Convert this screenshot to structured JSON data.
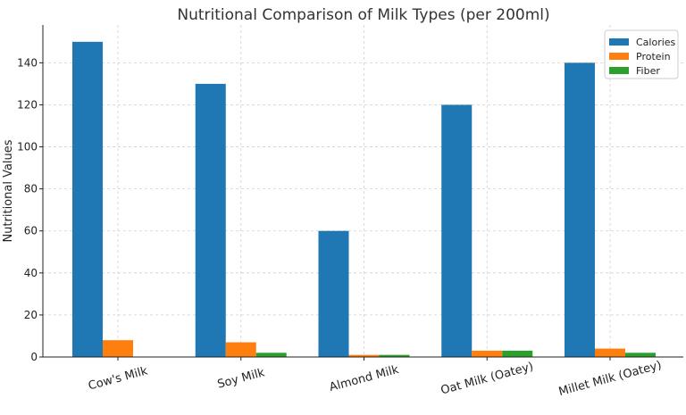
{
  "chart_data": {
    "type": "bar",
    "title": "Nutritional Comparison of Milk Types (per 200ml)",
    "xlabel": "",
    "ylabel": "Nutritional Values",
    "categories": [
      "Cow's Milk",
      "Soy Milk",
      "Almond Milk",
      "Oat Milk (Oatey)",
      "Millet Milk (Oatey)"
    ],
    "series": [
      {
        "name": "Calories",
        "color": "#1f77b4",
        "values": [
          150,
          130,
          60,
          120,
          140
        ]
      },
      {
        "name": "Protein",
        "color": "#ff7f0e",
        "values": [
          8,
          7,
          1,
          3,
          4
        ]
      },
      {
        "name": "Fiber",
        "color": "#2ca02c",
        "values": [
          0,
          2,
          1,
          3,
          2
        ]
      }
    ],
    "ylim": [
      0,
      158
    ],
    "yticks": [
      0,
      20,
      40,
      60,
      80,
      100,
      120,
      140
    ],
    "grid": true,
    "legend": "top-right"
  }
}
